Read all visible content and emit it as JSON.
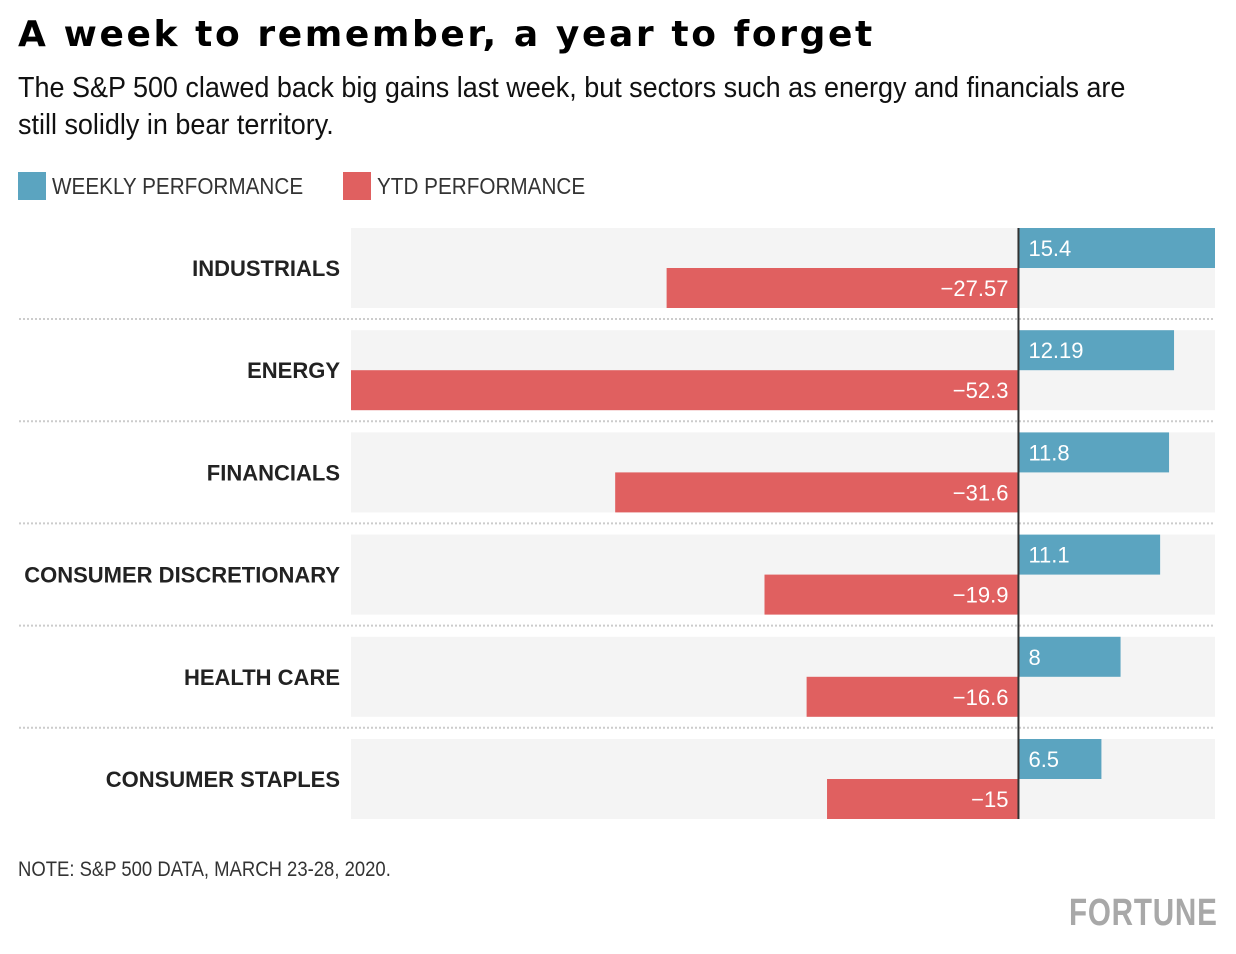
{
  "header": {
    "title": "A week to remember, a year to forget",
    "subtitle": "The S&P 500 clawed back big gains last week, but sectors such as energy and financials are still solidly in bear territory."
  },
  "legend": [
    {
      "label": "WEEKLY PERFORMANCE",
      "color": "#5BA4C0"
    },
    {
      "label": "YTD PERFORMANCE",
      "color": "#E06060"
    }
  ],
  "footer": {
    "note": "NOTE: S&P 500 DATA, MARCH 23-28, 2020.",
    "brand": "FORTUNE"
  },
  "chart_data": {
    "type": "bar",
    "orientation": "horizontal",
    "title": "A week to remember, a year to forget",
    "subtitle": "The S&P 500 clawed back big gains last week, but sectors such as energy and financials are still solidly in bear territory.",
    "categories": [
      "INDUSTRIALS",
      "ENERGY",
      "FINANCIALS",
      "CONSUMER DISCRETIONARY",
      "HEALTH CARE",
      "CONSUMER STAPLES"
    ],
    "series": [
      {
        "name": "WEEKLY PERFORMANCE",
        "color": "#5BA4C0",
        "values": [
          15.4,
          12.19,
          11.8,
          11.1,
          8,
          6.5
        ],
        "labels": [
          "15.4",
          "12.19",
          "11.8",
          "11.1",
          "8",
          "6.5"
        ]
      },
      {
        "name": "YTD PERFORMANCE",
        "color": "#E06060",
        "values": [
          -27.57,
          -52.3,
          -31.6,
          -19.9,
          -16.6,
          -15
        ],
        "labels": [
          "−27.57",
          "−52.3",
          "−31.6",
          "−19.9",
          "−16.6",
          "−15"
        ]
      }
    ],
    "xlim": [
      -52.3,
      15.4
    ],
    "xlabel": "",
    "ylabel": "",
    "grid": false,
    "legend_position": "top-left",
    "row_background": "#F4F4F4",
    "axis_color": "#333333",
    "separator_color": "#CCCCCC",
    "note": "NOTE: S&P 500 DATA, MARCH 23-28, 2020."
  }
}
